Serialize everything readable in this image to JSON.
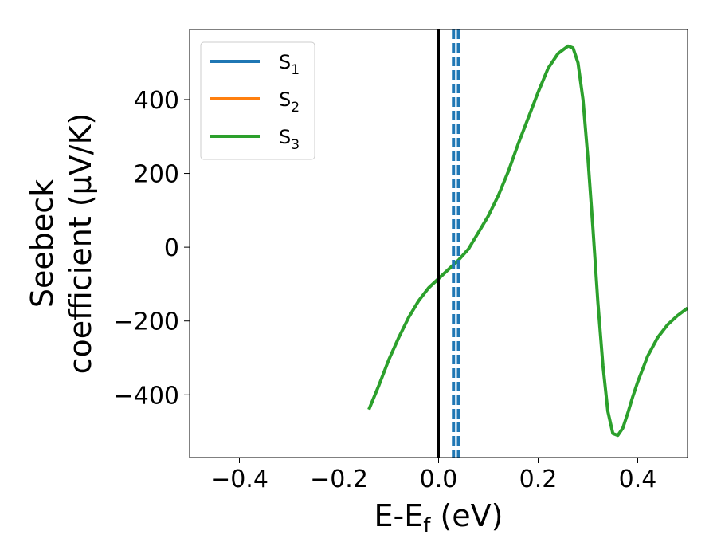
{
  "chart_data": {
    "type": "line",
    "xlabel": {
      "main": "E-E",
      "sub": "f",
      "unit": " (eV)"
    },
    "ylabel": {
      "line1": "Seebeck",
      "line2": "coefficient  (μV/K)"
    },
    "xlim": [
      -0.5,
      0.5
    ],
    "ylim": [
      -570,
      590
    ],
    "xticks": [
      -0.4,
      -0.2,
      0.0,
      0.2,
      0.4
    ],
    "xtick_labels": [
      "−0.4",
      "−0.2",
      "0.0",
      "0.2",
      "0.4"
    ],
    "yticks": [
      -400,
      -200,
      0,
      200,
      400
    ],
    "ytick_labels": [
      "−400",
      "−200",
      "0",
      "200",
      "400"
    ],
    "grid": false,
    "legend_position": "upper-left",
    "vertical_lines": [
      {
        "x": 0.0,
        "style": "solid",
        "color": "#000000"
      },
      {
        "x": 0.03,
        "style": "dashed",
        "color": "#1f77b4"
      },
      {
        "x": 0.04,
        "style": "dashed",
        "color": "#1f77b4"
      }
    ],
    "series": [
      {
        "name": "S",
        "sub": "1",
        "color": "#1f77b4",
        "x": [],
        "y": []
      },
      {
        "name": "S",
        "sub": "2",
        "color": "#ff7f0e",
        "x": [],
        "y": []
      },
      {
        "name": "S",
        "sub": "3",
        "color": "#2ca02c",
        "x": [
          -0.14,
          -0.12,
          -0.1,
          -0.08,
          -0.06,
          -0.04,
          -0.02,
          0.0,
          0.02,
          0.04,
          0.06,
          0.08,
          0.1,
          0.12,
          0.14,
          0.16,
          0.18,
          0.2,
          0.22,
          0.24,
          0.26,
          0.27,
          0.28,
          0.29,
          0.3,
          0.31,
          0.32,
          0.33,
          0.34,
          0.35,
          0.36,
          0.37,
          0.38,
          0.39,
          0.4,
          0.42,
          0.44,
          0.46,
          0.48,
          0.5
        ],
        "y": [
          -440,
          -375,
          -305,
          -245,
          -190,
          -145,
          -110,
          -85,
          -60,
          -35,
          -5,
          40,
          85,
          140,
          205,
          280,
          350,
          420,
          485,
          525,
          545,
          540,
          500,
          400,
          240,
          50,
          -150,
          -320,
          -445,
          -505,
          -510,
          -490,
          -450,
          -405,
          -365,
          -295,
          -245,
          -210,
          -185,
          -165
        ]
      }
    ]
  }
}
